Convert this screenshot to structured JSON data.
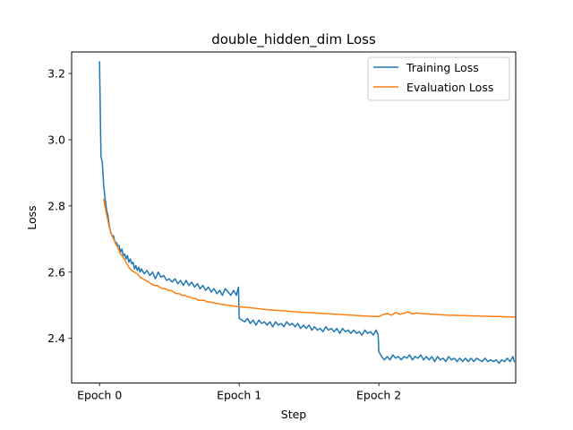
{
  "chart_data": {
    "type": "line",
    "title": "double_hidden_dim Loss",
    "xlabel": "Step",
    "ylabel": "Loss",
    "xlim": [
      -0.2,
      2.98
    ],
    "ylim": [
      2.265,
      3.265
    ],
    "x_ticks": [
      {
        "value": 0,
        "label": "Epoch 0"
      },
      {
        "value": 1,
        "label": "Epoch 1"
      },
      {
        "value": 2,
        "label": "Epoch 2"
      }
    ],
    "y_ticks": [
      {
        "value": 2.4,
        "label": "2.4"
      },
      {
        "value": 2.6,
        "label": "2.6"
      },
      {
        "value": 2.8,
        "label": "2.8"
      },
      {
        "value": 3.0,
        "label": "3.0"
      },
      {
        "value": 3.2,
        "label": "3.2"
      }
    ],
    "legend_position": "top-right",
    "series": [
      {
        "name": "Training Loss",
        "color": "#1f77b4",
        "points": [
          [
            0.0,
            3.235
          ],
          [
            0.01,
            2.95
          ],
          [
            0.02,
            2.93
          ],
          [
            0.03,
            2.86
          ],
          [
            0.04,
            2.82
          ],
          [
            0.05,
            2.79
          ],
          [
            0.06,
            2.77
          ],
          [
            0.07,
            2.74
          ],
          [
            0.08,
            2.72
          ],
          [
            0.09,
            2.71
          ],
          [
            0.1,
            2.71
          ],
          [
            0.11,
            2.69
          ],
          [
            0.12,
            2.69
          ],
          [
            0.13,
            2.68
          ],
          [
            0.14,
            2.68
          ],
          [
            0.15,
            2.66
          ],
          [
            0.16,
            2.67
          ],
          [
            0.17,
            2.65
          ],
          [
            0.18,
            2.655
          ],
          [
            0.19,
            2.64
          ],
          [
            0.2,
            2.65
          ],
          [
            0.21,
            2.63
          ],
          [
            0.22,
            2.64
          ],
          [
            0.23,
            2.625
          ],
          [
            0.24,
            2.63
          ],
          [
            0.25,
            2.61
          ],
          [
            0.26,
            2.62
          ],
          [
            0.27,
            2.605
          ],
          [
            0.28,
            2.615
          ],
          [
            0.29,
            2.6
          ],
          [
            0.3,
            2.61
          ],
          [
            0.32,
            2.595
          ],
          [
            0.34,
            2.605
          ],
          [
            0.36,
            2.59
          ],
          [
            0.38,
            2.6
          ],
          [
            0.4,
            2.58
          ],
          [
            0.42,
            2.6
          ],
          [
            0.44,
            2.585
          ],
          [
            0.46,
            2.59
          ],
          [
            0.48,
            2.575
          ],
          [
            0.5,
            2.58
          ],
          [
            0.52,
            2.57
          ],
          [
            0.54,
            2.58
          ],
          [
            0.56,
            2.565
          ],
          [
            0.58,
            2.575
          ],
          [
            0.6,
            2.56
          ],
          [
            0.62,
            2.575
          ],
          [
            0.64,
            2.56
          ],
          [
            0.66,
            2.57
          ],
          [
            0.68,
            2.555
          ],
          [
            0.7,
            2.565
          ],
          [
            0.72,
            2.55
          ],
          [
            0.74,
            2.56
          ],
          [
            0.76,
            2.545
          ],
          [
            0.78,
            2.555
          ],
          [
            0.8,
            2.54
          ],
          [
            0.82,
            2.55
          ],
          [
            0.84,
            2.535
          ],
          [
            0.86,
            2.545
          ],
          [
            0.88,
            2.53
          ],
          [
            0.9,
            2.55
          ],
          [
            0.92,
            2.54
          ],
          [
            0.94,
            2.53
          ],
          [
            0.96,
            2.545
          ],
          [
            0.98,
            2.53
          ],
          [
            0.995,
            2.555
          ],
          [
            1.0,
            2.46
          ],
          [
            1.02,
            2.455
          ],
          [
            1.04,
            2.45
          ],
          [
            1.06,
            2.46
          ],
          [
            1.08,
            2.445
          ],
          [
            1.1,
            2.455
          ],
          [
            1.12,
            2.44
          ],
          [
            1.14,
            2.455
          ],
          [
            1.16,
            2.445
          ],
          [
            1.18,
            2.45
          ],
          [
            1.2,
            2.44
          ],
          [
            1.22,
            2.45
          ],
          [
            1.24,
            2.435
          ],
          [
            1.26,
            2.45
          ],
          [
            1.28,
            2.44
          ],
          [
            1.3,
            2.445
          ],
          [
            1.32,
            2.435
          ],
          [
            1.34,
            2.45
          ],
          [
            1.36,
            2.44
          ],
          [
            1.38,
            2.445
          ],
          [
            1.4,
            2.435
          ],
          [
            1.42,
            2.445
          ],
          [
            1.44,
            2.43
          ],
          [
            1.46,
            2.44
          ],
          [
            1.48,
            2.43
          ],
          [
            1.5,
            2.44
          ],
          [
            1.52,
            2.425
          ],
          [
            1.54,
            2.435
          ],
          [
            1.56,
            2.425
          ],
          [
            1.58,
            2.43
          ],
          [
            1.6,
            2.42
          ],
          [
            1.62,
            2.435
          ],
          [
            1.64,
            2.425
          ],
          [
            1.66,
            2.43
          ],
          [
            1.68,
            2.42
          ],
          [
            1.7,
            2.43
          ],
          [
            1.72,
            2.415
          ],
          [
            1.74,
            2.43
          ],
          [
            1.76,
            2.42
          ],
          [
            1.78,
            2.425
          ],
          [
            1.8,
            2.415
          ],
          [
            1.82,
            2.425
          ],
          [
            1.84,
            2.415
          ],
          [
            1.86,
            2.42
          ],
          [
            1.88,
            2.41
          ],
          [
            1.9,
            2.425
          ],
          [
            1.92,
            2.415
          ],
          [
            1.94,
            2.42
          ],
          [
            1.96,
            2.41
          ],
          [
            1.98,
            2.425
          ],
          [
            1.995,
            2.41
          ],
          [
            2.0,
            2.36
          ],
          [
            2.02,
            2.345
          ],
          [
            2.04,
            2.335
          ],
          [
            2.06,
            2.345
          ],
          [
            2.08,
            2.335
          ],
          [
            2.1,
            2.35
          ],
          [
            2.12,
            2.34
          ],
          [
            2.14,
            2.345
          ],
          [
            2.16,
            2.335
          ],
          [
            2.18,
            2.345
          ],
          [
            2.2,
            2.34
          ],
          [
            2.22,
            2.35
          ],
          [
            2.24,
            2.335
          ],
          [
            2.26,
            2.345
          ],
          [
            2.28,
            2.34
          ],
          [
            2.3,
            2.35
          ],
          [
            2.32,
            2.335
          ],
          [
            2.34,
            2.345
          ],
          [
            2.36,
            2.335
          ],
          [
            2.38,
            2.345
          ],
          [
            2.4,
            2.33
          ],
          [
            2.42,
            2.345
          ],
          [
            2.44,
            2.335
          ],
          [
            2.46,
            2.34
          ],
          [
            2.48,
            2.33
          ],
          [
            2.5,
            2.345
          ],
          [
            2.52,
            2.335
          ],
          [
            2.54,
            2.34
          ],
          [
            2.56,
            2.33
          ],
          [
            2.58,
            2.34
          ],
          [
            2.6,
            2.33
          ],
          [
            2.62,
            2.34
          ],
          [
            2.64,
            2.33
          ],
          [
            2.66,
            2.34
          ],
          [
            2.68,
            2.33
          ],
          [
            2.7,
            2.34
          ],
          [
            2.72,
            2.335
          ],
          [
            2.74,
            2.33
          ],
          [
            2.76,
            2.34
          ],
          [
            2.78,
            2.33
          ],
          [
            2.8,
            2.335
          ],
          [
            2.82,
            2.33
          ],
          [
            2.84,
            2.335
          ],
          [
            2.86,
            2.325
          ],
          [
            2.88,
            2.335
          ],
          [
            2.9,
            2.33
          ],
          [
            2.92,
            2.34
          ],
          [
            2.94,
            2.33
          ],
          [
            2.96,
            2.345
          ],
          [
            2.97,
            2.33
          ]
        ]
      },
      {
        "name": "Evaluation Loss",
        "color": "#ff7f0e",
        "points": [
          [
            0.03,
            2.82
          ],
          [
            0.05,
            2.775
          ],
          [
            0.07,
            2.735
          ],
          [
            0.09,
            2.71
          ],
          [
            0.11,
            2.69
          ],
          [
            0.13,
            2.675
          ],
          [
            0.15,
            2.655
          ],
          [
            0.17,
            2.645
          ],
          [
            0.19,
            2.63
          ],
          [
            0.21,
            2.615
          ],
          [
            0.23,
            2.605
          ],
          [
            0.25,
            2.6
          ],
          [
            0.27,
            2.595
          ],
          [
            0.29,
            2.585
          ],
          [
            0.31,
            2.58
          ],
          [
            0.33,
            2.575
          ],
          [
            0.35,
            2.57
          ],
          [
            0.37,
            2.565
          ],
          [
            0.39,
            2.56
          ],
          [
            0.41,
            2.56
          ],
          [
            0.43,
            2.555
          ],
          [
            0.45,
            2.55
          ],
          [
            0.47,
            2.55
          ],
          [
            0.49,
            2.545
          ],
          [
            0.51,
            2.545
          ],
          [
            0.53,
            2.54
          ],
          [
            0.55,
            2.535
          ],
          [
            0.57,
            2.535
          ],
          [
            0.59,
            2.53
          ],
          [
            0.61,
            2.53
          ],
          [
            0.63,
            2.525
          ],
          [
            0.65,
            2.525
          ],
          [
            0.67,
            2.52
          ],
          [
            0.69,
            2.52
          ],
          [
            0.71,
            2.515
          ],
          [
            0.73,
            2.515
          ],
          [
            0.75,
            2.515
          ],
          [
            0.77,
            2.51
          ],
          [
            0.79,
            2.51
          ],
          [
            0.81,
            2.508
          ],
          [
            0.83,
            2.506
          ],
          [
            0.85,
            2.505
          ],
          [
            0.87,
            2.503
          ],
          [
            0.89,
            2.502
          ],
          [
            0.91,
            2.5
          ],
          [
            0.93,
            2.5
          ],
          [
            0.95,
            2.498
          ],
          [
            0.97,
            2.497
          ],
          [
            0.99,
            2.496
          ],
          [
            1.01,
            2.495
          ],
          [
            1.05,
            2.494
          ],
          [
            1.09,
            2.492
          ],
          [
            1.13,
            2.49
          ],
          [
            1.17,
            2.488
          ],
          [
            1.21,
            2.486
          ],
          [
            1.25,
            2.485
          ],
          [
            1.29,
            2.484
          ],
          [
            1.33,
            2.483
          ],
          [
            1.37,
            2.481
          ],
          [
            1.41,
            2.48
          ],
          [
            1.45,
            2.479
          ],
          [
            1.49,
            2.478
          ],
          [
            1.53,
            2.477
          ],
          [
            1.57,
            2.476
          ],
          [
            1.61,
            2.475
          ],
          [
            1.65,
            2.474
          ],
          [
            1.69,
            2.473
          ],
          [
            1.73,
            2.472
          ],
          [
            1.77,
            2.471
          ],
          [
            1.81,
            2.47
          ],
          [
            1.85,
            2.469
          ],
          [
            1.89,
            2.468
          ],
          [
            1.93,
            2.467
          ],
          [
            1.97,
            2.466
          ],
          [
            2.0,
            2.466
          ],
          [
            2.03,
            2.472
          ],
          [
            2.06,
            2.475
          ],
          [
            2.09,
            2.47
          ],
          [
            2.12,
            2.478
          ],
          [
            2.15,
            2.473
          ],
          [
            2.18,
            2.476
          ],
          [
            2.21,
            2.48
          ],
          [
            2.24,
            2.474
          ],
          [
            2.27,
            2.477
          ],
          [
            2.3,
            2.475
          ],
          [
            2.34,
            2.474
          ],
          [
            2.38,
            2.473
          ],
          [
            2.42,
            2.472
          ],
          [
            2.46,
            2.471
          ],
          [
            2.5,
            2.47
          ],
          [
            2.54,
            2.47
          ],
          [
            2.58,
            2.469
          ],
          [
            2.62,
            2.469
          ],
          [
            2.66,
            2.468
          ],
          [
            2.7,
            2.468
          ],
          [
            2.74,
            2.467
          ],
          [
            2.78,
            2.467
          ],
          [
            2.82,
            2.466
          ],
          [
            2.86,
            2.466
          ],
          [
            2.9,
            2.465
          ],
          [
            2.94,
            2.465
          ],
          [
            2.97,
            2.464
          ]
        ]
      }
    ]
  }
}
